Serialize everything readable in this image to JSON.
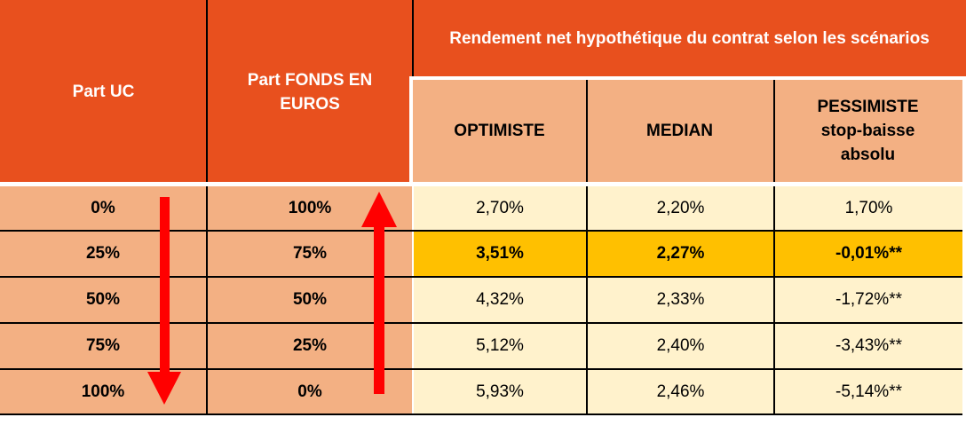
{
  "header": {
    "part_uc": "Part UC",
    "part_fonds": "Part FONDS EN\nEUROS",
    "group_title": "Rendement net hypothétique du contrat selon les scénarios",
    "optimiste": "OPTIMISTE",
    "median": "MEDIAN",
    "pessimiste": "PESSIMISTE\nstop-baisse\nabsolu"
  },
  "rows": [
    {
      "uc": "0%",
      "fonds": "100%",
      "optimiste": "2,70%",
      "median": "2,20%",
      "pessimiste": "1,70%"
    },
    {
      "uc": "25%",
      "fonds": "75%",
      "optimiste": "3,51%",
      "median": "2,27%",
      "pessimiste": "-0,01%**"
    },
    {
      "uc": "50%",
      "fonds": "50%",
      "optimiste": "4,32%",
      "median": "2,33%",
      "pessimiste": "-1,72%**"
    },
    {
      "uc": "75%",
      "fonds": "25%",
      "optimiste": "5,12%",
      "median": "2,40%",
      "pessimiste": "-3,43%**"
    },
    {
      "uc": "100%",
      "fonds": "0%",
      "optimiste": "5,93%",
      "median": "2,46%",
      "pessimiste": "-5,14%**"
    }
  ],
  "highlighted_row": 1,
  "colors": {
    "header": "#E8501E",
    "subheader": "#F3B083",
    "values": "#FFF2CC",
    "highlight": "#FFC000",
    "arrow": "#FF0000"
  },
  "icons": [
    "arrow-down-icon",
    "arrow-up-icon"
  ]
}
